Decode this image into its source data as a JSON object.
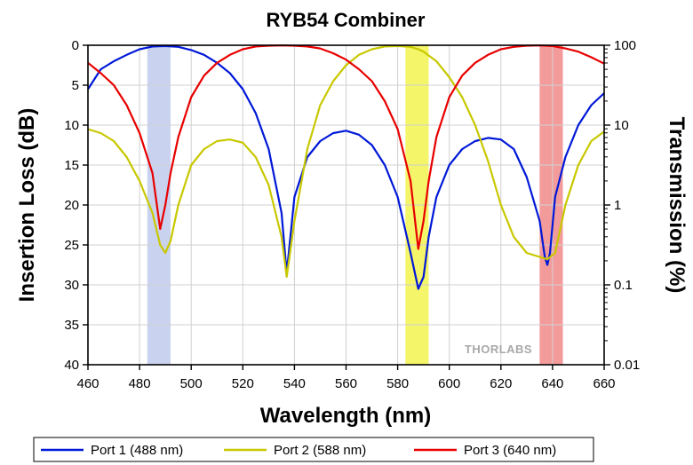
{
  "chart_data": {
    "type": "line",
    "title": "RYB54 Combiner",
    "xlabel": "Wavelength (nm)",
    "ylabel_left": "Insertion Loss (dB)",
    "ylabel_right": "Transmission (%)",
    "xlim": [
      460,
      660
    ],
    "ylim_left": [
      0,
      40
    ],
    "y_left_inverted": true,
    "ylim_right": [
      100,
      0.01
    ],
    "y_right_scale": "log",
    "x_ticks": [
      "460",
      "480",
      "500",
      "520",
      "540",
      "560",
      "580",
      "600",
      "620",
      "640",
      "660"
    ],
    "y_left_ticks": [
      "0",
      "5",
      "10",
      "15",
      "20",
      "25",
      "30",
      "35",
      "40"
    ],
    "y_right_ticks": [
      "100",
      "10",
      "1",
      "0.1",
      "0.01"
    ],
    "grid": true,
    "legend_position": "bottom",
    "highlight_bands": [
      {
        "x": [
          483,
          492
        ],
        "color": "#c9d3ef"
      },
      {
        "x": [
          583,
          592
        ],
        "color": "#f5f56a"
      },
      {
        "x": [
          635,
          644
        ],
        "color": "#f39b9b"
      }
    ],
    "watermark": "THORLABS",
    "series": [
      {
        "name": "Port 1 (488 nm)",
        "color": "#0018d8",
        "x": [
          460,
          465,
          470,
          475,
          480,
          485,
          490,
          495,
          500,
          505,
          510,
          515,
          520,
          525,
          530,
          535,
          537,
          540,
          545,
          550,
          555,
          560,
          565,
          570,
          575,
          580,
          585,
          588,
          590,
          592,
          595,
          600,
          605,
          610,
          615,
          620,
          625,
          630,
          635,
          637,
          638,
          639,
          641,
          645,
          650,
          655,
          660
        ],
        "y": [
          5.5,
          3.0,
          2.0,
          1.2,
          0.5,
          0.15,
          0.1,
          0.2,
          0.6,
          1.2,
          2.2,
          3.5,
          5.5,
          8.5,
          13.0,
          21.0,
          28.5,
          19.0,
          14.0,
          12.0,
          11.0,
          10.7,
          11.2,
          12.5,
          15.0,
          19.0,
          26.0,
          30.5,
          29.0,
          24.0,
          19.0,
          15.0,
          13.0,
          12.0,
          11.6,
          11.8,
          13.0,
          16.5,
          22.0,
          26.5,
          27.5,
          26.0,
          19.0,
          14.0,
          10.0,
          7.5,
          6.0
        ]
      },
      {
        "name": "Port 2 (588 nm)",
        "color": "#c8c800",
        "x": [
          460,
          465,
          470,
          475,
          480,
          485,
          488,
          490,
          492,
          495,
          500,
          505,
          510,
          515,
          520,
          525,
          530,
          535,
          537,
          540,
          545,
          550,
          555,
          560,
          565,
          570,
          575,
          580,
          585,
          588,
          590,
          595,
          600,
          605,
          610,
          615,
          620,
          625,
          630,
          635,
          638,
          641,
          645,
          650,
          655,
          660
        ],
        "y": [
          10.5,
          11.0,
          12.0,
          14.0,
          17.0,
          21.0,
          25.0,
          26.0,
          24.5,
          20.0,
          15.0,
          13.0,
          12.0,
          11.8,
          12.2,
          14.0,
          17.5,
          24.0,
          29.0,
          22.0,
          13.0,
          7.5,
          4.5,
          2.5,
          1.2,
          0.5,
          0.15,
          0.1,
          0.2,
          0.5,
          0.8,
          2.0,
          4.0,
          6.5,
          10.0,
          14.5,
          20.0,
          24.0,
          26.0,
          26.5,
          26.8,
          26.0,
          20.0,
          15.0,
          12.0,
          10.8
        ]
      },
      {
        "name": "Port 3 (640 nm)",
        "color": "#e80000",
        "x": [
          460,
          465,
          470,
          475,
          480,
          485,
          488,
          490,
          492,
          495,
          500,
          505,
          510,
          515,
          520,
          525,
          530,
          535,
          540,
          545,
          550,
          555,
          560,
          565,
          570,
          575,
          580,
          585,
          588,
          590,
          592,
          595,
          600,
          605,
          610,
          615,
          620,
          625,
          630,
          635,
          640,
          645,
          650,
          655,
          660
        ],
        "y": [
          2.2,
          3.5,
          5.0,
          7.5,
          11.0,
          16.0,
          23.0,
          20.0,
          16.0,
          11.5,
          6.5,
          3.8,
          2.2,
          1.2,
          0.5,
          0.15,
          0.05,
          0.02,
          0.05,
          0.15,
          0.4,
          1.0,
          1.8,
          3.0,
          4.5,
          7.0,
          10.5,
          17.0,
          25.5,
          22.0,
          17.0,
          11.5,
          6.5,
          3.8,
          2.2,
          1.2,
          0.5,
          0.2,
          0.05,
          0.02,
          0.1,
          0.4,
          0.8,
          1.5,
          2.3
        ]
      }
    ]
  }
}
